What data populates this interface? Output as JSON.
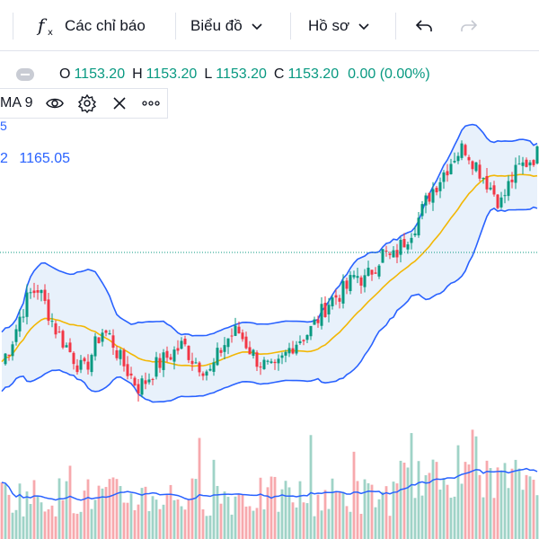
{
  "toolbar": {
    "indicators_label": "Các chỉ báo",
    "chart_label": "Biểu đồ",
    "profile_label": "Hồ sơ"
  },
  "legend": {
    "open_label": "O",
    "open_value": "1153.20",
    "high_label": "H",
    "high_value": "1153.20",
    "low_label": "L",
    "low_value": "1153.20",
    "close_label": "C",
    "close_value": "1153.20",
    "change": "0.00 (0.00%)"
  },
  "indicator": {
    "name": "MA 9",
    "cut_digit_top": "5",
    "cut_digit": "2",
    "value": "1165.05"
  },
  "colors": {
    "up": "#089981",
    "down": "#f23645",
    "band": "#2962ff",
    "ma": "#f2b705",
    "band_fill": "#e8f1fb",
    "vol_up": "#9fd3c7",
    "vol_down": "#f7a9ad",
    "vol_ma": "#2962ff"
  },
  "icons": [
    "fx-icon",
    "chevron-down-icon",
    "undo-icon",
    "redo-icon",
    "collapse-icon",
    "eye-icon",
    "gear-icon",
    "close-icon",
    "more-icon"
  ],
  "chart_data": {
    "type": "candlestick",
    "series": [
      {
        "name": "price",
        "close_path": [
          1048,
          1060,
          1080,
          1095,
          1100,
          1085,
          1070,
          1060,
          1050,
          1040,
          1055,
          1070,
          1065,
          1050,
          1040,
          1030,
          1035,
          1045,
          1050,
          1055,
          1060,
          1050,
          1045,
          1040,
          1055,
          1065,
          1070,
          1060,
          1050,
          1045,
          1040,
          1050,
          1060,
          1065,
          1070,
          1080,
          1090,
          1095,
          1100,
          1110,
          1105,
          1115,
          1125,
          1120,
          1130,
          1140,
          1150,
          1165,
          1175,
          1185,
          1195,
          1200,
          1190,
          1180,
          1170,
          1160,
          1175,
          1185,
          1190,
          1195
        ]
      },
      {
        "name": "bollinger_upper",
        "values": []
      },
      {
        "name": "bollinger_lower",
        "values": []
      },
      {
        "name": "ma",
        "values": []
      }
    ],
    "reference_price": 1153.2
  }
}
